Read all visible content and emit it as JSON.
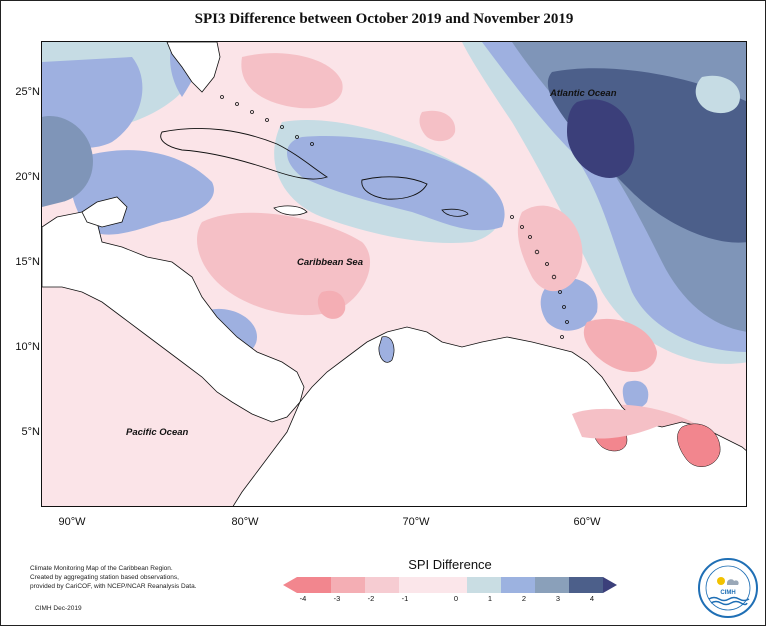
{
  "title": "SPI3 Difference between October 2019 and November 2019",
  "axes": {
    "lat_labels": [
      "25°N",
      "20°N",
      "15°N",
      "10°N",
      "5°N"
    ],
    "lon_labels": [
      "90°W",
      "80°W",
      "70°W",
      "60°W"
    ]
  },
  "ocean_labels": {
    "atlantic": "Atlantic Ocean",
    "caribbean": "Caribbean Sea",
    "pacific": "Pacific Ocean"
  },
  "credit": {
    "line1": "Climate Monitoring Map of the Caribbean Region.",
    "line2": "Created by aggregating station based observations,",
    "line3": "provided by CariCOF, with NCEP/NCAR Reanalysis Data.",
    "source": "CIMH Dec-2019"
  },
  "legend": {
    "title": "SPI Difference",
    "ticks": [
      "-4",
      "-3",
      "-2",
      "-1",
      "0",
      "1",
      "2",
      "3",
      "4"
    ],
    "colors": [
      "#f2868e",
      "#f4aeb4",
      "#f6ccd2",
      "#fbe6ea",
      "#c9dde3",
      "#9cb2e0",
      "#7f93c9",
      "#8aa0ba",
      "#4c5f8a",
      "#3b3f7a"
    ]
  },
  "logo": {
    "name": "CIMH"
  }
}
